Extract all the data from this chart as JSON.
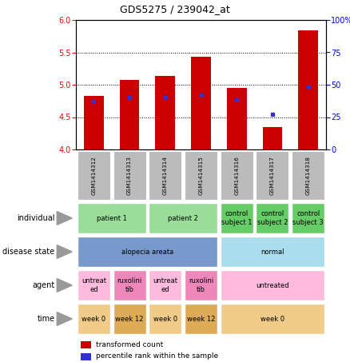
{
  "title": "GDS5275 / 239042_at",
  "samples": [
    "GSM1414312",
    "GSM1414313",
    "GSM1414314",
    "GSM1414315",
    "GSM1414316",
    "GSM1414317",
    "GSM1414318"
  ],
  "transformed_counts": [
    4.83,
    5.07,
    5.14,
    5.43,
    4.95,
    4.35,
    5.84
  ],
  "percentile_ranks": [
    37,
    40,
    40,
    42,
    38,
    27,
    48
  ],
  "ylim_left": [
    4.0,
    6.0
  ],
  "ylim_right": [
    0,
    100
  ],
  "yticks_left": [
    4.0,
    4.5,
    5.0,
    5.5,
    6.0
  ],
  "yticks_right": [
    0,
    25,
    50,
    75,
    100
  ],
  "bar_color": "#cc0000",
  "dot_color": "#3333cc",
  "rows": [
    {
      "label": "individual",
      "cells": [
        {
          "text": "patient 1",
          "span": 2,
          "color": "#99dd99"
        },
        {
          "text": "patient 2",
          "span": 2,
          "color": "#99dd99"
        },
        {
          "text": "control\nsubject 1",
          "span": 1,
          "color": "#66cc66"
        },
        {
          "text": "control\nsubject 2",
          "span": 1,
          "color": "#66cc66"
        },
        {
          "text": "control\nsubject 3",
          "span": 1,
          "color": "#66cc66"
        }
      ]
    },
    {
      "label": "disease state",
      "cells": [
        {
          "text": "alopecia areata",
          "span": 4,
          "color": "#7799cc"
        },
        {
          "text": "normal",
          "span": 3,
          "color": "#aaddee"
        }
      ]
    },
    {
      "label": "agent",
      "cells": [
        {
          "text": "untreat\ned",
          "span": 1,
          "color": "#ffbbdd"
        },
        {
          "text": "ruxolini\ntib",
          "span": 1,
          "color": "#ee88bb"
        },
        {
          "text": "untreat\ned",
          "span": 1,
          "color": "#ffbbdd"
        },
        {
          "text": "ruxolini\ntib",
          "span": 1,
          "color": "#ee88bb"
        },
        {
          "text": "untreated",
          "span": 3,
          "color": "#ffbbdd"
        }
      ]
    },
    {
      "label": "time",
      "cells": [
        {
          "text": "week 0",
          "span": 1,
          "color": "#f0cc88"
        },
        {
          "text": "week 12",
          "span": 1,
          "color": "#ddaa55"
        },
        {
          "text": "week 0",
          "span": 1,
          "color": "#f0cc88"
        },
        {
          "text": "week 12",
          "span": 1,
          "color": "#ddaa55"
        },
        {
          "text": "week 0",
          "span": 3,
          "color": "#f0cc88"
        }
      ]
    }
  ],
  "sample_bg_color": "#bbbbbb",
  "legend_red_text": "transformed count",
  "legend_blue_text": "percentile rank within the sample"
}
